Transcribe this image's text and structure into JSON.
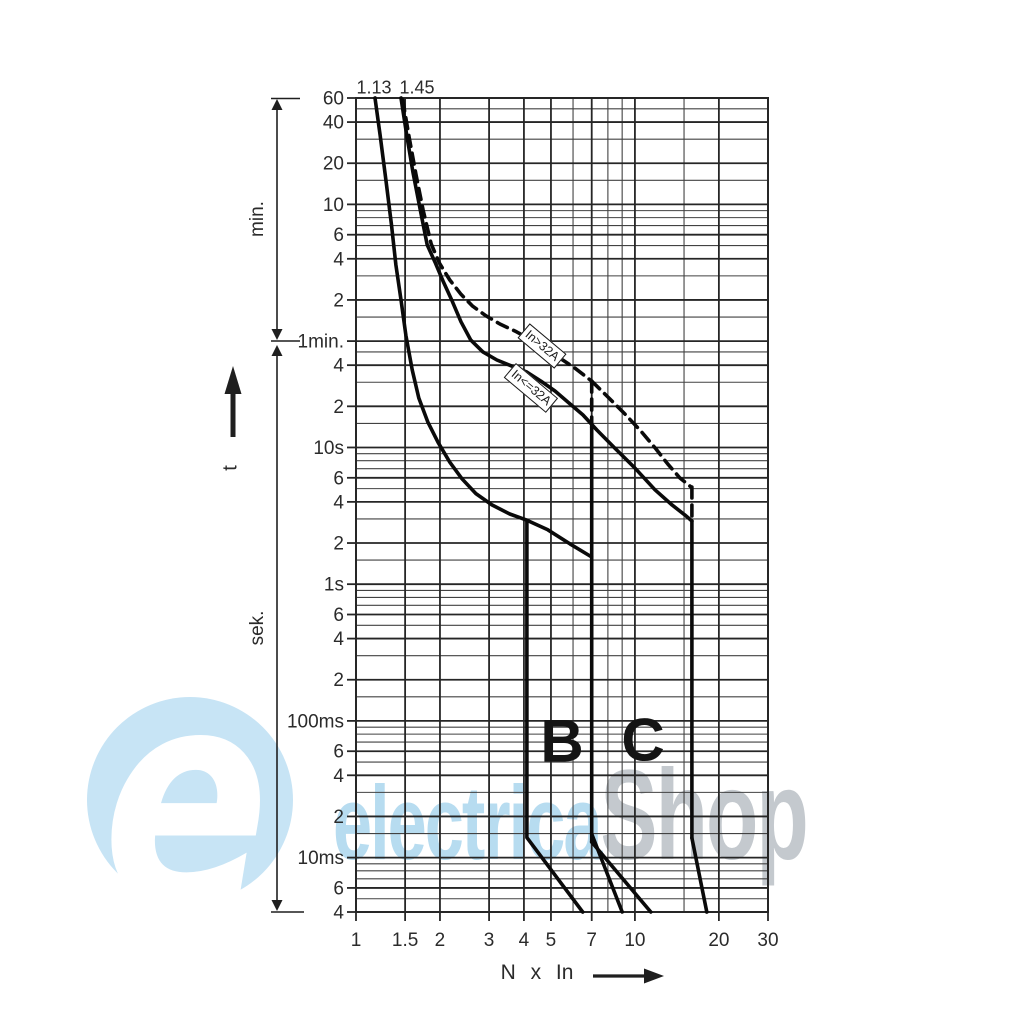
{
  "watermark": {
    "logo_letter": "e",
    "brand_primary": "electrica",
    "brand_secondary": "Shop",
    "logo_color": "#c7e4f5",
    "brand_primary_color": "#b7dcf0",
    "brand_secondary_color": "#c4c9ce"
  },
  "figure": {
    "curve_top_labels": [
      "1.13",
      "1.45"
    ],
    "y_axis_unit_top": "min.",
    "y_axis_unit_bottom": "sek.",
    "y_axis_symbol": "t",
    "x_axis_title": "N x In",
    "region_labels": [
      "B",
      "C"
    ],
    "callouts": [
      "In>32A",
      "In<=32A"
    ]
  },
  "chart_data": {
    "type": "line",
    "title": "",
    "x_axis": {
      "label": "N x In",
      "scale": "log",
      "min": 1,
      "max": 30,
      "labeled_ticks": [
        1,
        1.5,
        2,
        3,
        4,
        5,
        7,
        10,
        20,
        30
      ],
      "minor_gridlines": [
        6,
        8,
        9,
        15
      ]
    },
    "y_axis": {
      "label": "t",
      "scale": "log",
      "min_seconds": 0.004,
      "max_seconds": 3600,
      "labeled_ticks": [
        {
          "t": 3600,
          "label": "60"
        },
        {
          "t": 2400,
          "label": "40"
        },
        {
          "t": 1200,
          "label": "20"
        },
        {
          "t": 600,
          "label": "10"
        },
        {
          "t": 360,
          "label": "6"
        },
        {
          "t": 240,
          "label": "4"
        },
        {
          "t": 120,
          "label": "2"
        },
        {
          "t": 60,
          "label": "1min."
        },
        {
          "t": 40,
          "label": "4"
        },
        {
          "t": 20,
          "label": "2"
        },
        {
          "t": 10,
          "label": "10s"
        },
        {
          "t": 6,
          "label": "6"
        },
        {
          "t": 4,
          "label": "4"
        },
        {
          "t": 2,
          "label": "2"
        },
        {
          "t": 1,
          "label": "1s"
        },
        {
          "t": 0.6,
          "label": "6"
        },
        {
          "t": 0.4,
          "label": "4"
        },
        {
          "t": 0.2,
          "label": "2"
        },
        {
          "t": 0.1,
          "label": "100ms"
        },
        {
          "t": 0.06,
          "label": "6"
        },
        {
          "t": 0.04,
          "label": "4"
        },
        {
          "t": 0.02,
          "label": "2"
        },
        {
          "t": 0.01,
          "label": "10ms"
        },
        {
          "t": 0.006,
          "label": "6"
        },
        {
          "t": 0.004,
          "label": "4"
        }
      ],
      "minor_gridlines": [
        3000,
        1800,
        900,
        540,
        480,
        420,
        300,
        180,
        90,
        50,
        30,
        15,
        9,
        8,
        7,
        5,
        3,
        1.5,
        0.9,
        0.8,
        0.7,
        0.5,
        0.3,
        0.15,
        0.09,
        0.08,
        0.07,
        0.05,
        0.03,
        0.015,
        0.009,
        0.008,
        0.007,
        0.005
      ]
    },
    "series": [
      {
        "name": "thermal-lower-1.13",
        "style": "solid",
        "points": [
          [
            1.17,
            3600
          ],
          [
            1.22,
            1930
          ],
          [
            1.28,
            905
          ],
          [
            1.34,
            424
          ],
          [
            1.39,
            216
          ],
          [
            1.45,
            120
          ],
          [
            1.51,
            66
          ],
          [
            1.59,
            37
          ],
          [
            1.68,
            23
          ],
          [
            1.81,
            15.3
          ],
          [
            1.97,
            10.9
          ],
          [
            2.17,
            7.8
          ],
          [
            2.4,
            5.9
          ],
          [
            2.69,
            4.6
          ],
          [
            3.07,
            3.8
          ],
          [
            3.56,
            3.26
          ],
          [
            4.1,
            2.94
          ],
          [
            4.87,
            2.5
          ],
          [
            5.85,
            1.97
          ],
          [
            7.0,
            1.58
          ]
        ]
      },
      {
        "name": "b-lower-magnetic",
        "style": "solid",
        "points": [
          [
            4.1,
            2.94
          ],
          [
            4.1,
            0.014
          ],
          [
            6.5,
            0.004
          ]
        ]
      },
      {
        "name": "bc-shared-magnetic",
        "style": "solid",
        "points": [
          [
            7.0,
            14.1
          ],
          [
            7.0,
            0.013
          ]
        ]
      },
      {
        "name": "b-upper-min-time",
        "style": "solid",
        "points": [
          [
            7.0,
            0.0149
          ],
          [
            9.0,
            0.004
          ]
        ]
      },
      {
        "name": "c-lower-min-time",
        "style": "solid",
        "points": [
          [
            7.0,
            0.013
          ],
          [
            11.4,
            0.004
          ]
        ]
      },
      {
        "name": "thermal-upper-le32-1.45",
        "style": "solid",
        "points": [
          [
            1.45,
            3600
          ],
          [
            1.52,
            1930
          ],
          [
            1.6,
            1035
          ],
          [
            1.7,
            546
          ],
          [
            1.8,
            303
          ],
          [
            1.92,
            227
          ],
          [
            2.05,
            165
          ],
          [
            2.21,
            118
          ],
          [
            2.38,
            83
          ],
          [
            2.58,
            61
          ],
          [
            2.85,
            50
          ],
          [
            3.2,
            43.6
          ],
          [
            3.62,
            39.4
          ],
          [
            4.1,
            35.6
          ],
          [
            4.6,
            30.6
          ],
          [
            5.17,
            25.9
          ],
          [
            5.81,
            21.1
          ],
          [
            6.51,
            17.3
          ],
          [
            7.31,
            13.4
          ],
          [
            8.47,
            9.9
          ],
          [
            9.98,
            7.1
          ],
          [
            11.8,
            4.9
          ],
          [
            13.6,
            3.79
          ],
          [
            15.1,
            3.21
          ],
          [
            16.0,
            2.9
          ]
        ]
      },
      {
        "name": "c-upper-magnetic",
        "style": "solid",
        "points": [
          [
            16.0,
            2.9
          ],
          [
            16.0,
            0.0139
          ]
        ]
      },
      {
        "name": "c-upper-min-time",
        "style": "solid",
        "points": [
          [
            16.0,
            0.0139
          ],
          [
            18.1,
            0.004
          ]
        ]
      },
      {
        "name": "thermal-upper-gt32-dashed",
        "style": "dashed",
        "points": [
          [
            1.47,
            3480
          ],
          [
            1.55,
            1866
          ],
          [
            1.64,
            1000
          ],
          [
            1.74,
            546
          ],
          [
            1.86,
            308
          ],
          [
            1.99,
            223
          ],
          [
            2.17,
            168
          ],
          [
            2.38,
            132
          ],
          [
            2.62,
            108
          ],
          [
            2.92,
            92
          ],
          [
            3.28,
            80
          ],
          [
            3.72,
            71
          ],
          [
            4.2,
            62
          ],
          [
            4.76,
            52.5
          ],
          [
            5.39,
            45
          ],
          [
            6.1,
            38
          ],
          [
            7.0,
            30.6
          ]
        ]
      },
      {
        "name": "b-upper-drop-gt32-dashed",
        "style": "dashed",
        "points": [
          [
            7.0,
            30.6
          ],
          [
            7.0,
            14.1
          ]
        ]
      },
      {
        "name": "c-thermal-gt32-cont-dashed",
        "style": "dashed",
        "points": [
          [
            7.0,
            30.6
          ],
          [
            8.0,
            23.4
          ],
          [
            9.2,
            17.6
          ],
          [
            10.5,
            13.2
          ],
          [
            11.9,
            9.75
          ],
          [
            13.1,
            7.6
          ],
          [
            14.5,
            5.98
          ],
          [
            15.9,
            5.14
          ]
        ]
      },
      {
        "name": "c-upper-drop-gt32-dashed",
        "style": "dashed",
        "points": [
          [
            16.0,
            5.14
          ],
          [
            16.0,
            2.9
          ]
        ]
      }
    ],
    "annotations": [
      "In>32A",
      "In<=32A"
    ],
    "legend": "none",
    "grid": "on"
  }
}
